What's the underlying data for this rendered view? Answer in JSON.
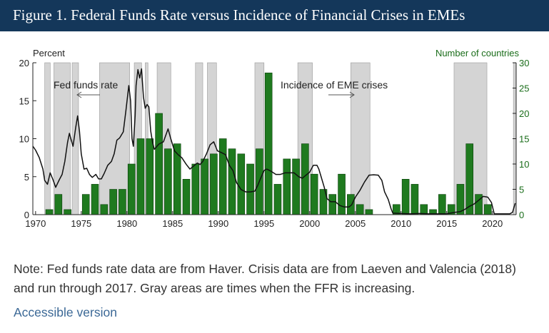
{
  "header": {
    "title": "Figure 1. Federal Funds Rate versus Incidence of Financial Crises in EMEs"
  },
  "chart_data": {
    "type": "bar",
    "left_axis_label": "Percent",
    "right_axis_label": "Number of countries",
    "left_ticks": [
      0,
      5,
      10,
      15,
      20
    ],
    "right_ticks": [
      0,
      5,
      10,
      15,
      20,
      25,
      30
    ],
    "left_ylim": [
      0,
      20
    ],
    "right_ylim": [
      0,
      30
    ],
    "right_tick_labels": [
      "0",
      "5",
      "10",
      "15",
      "20",
      "25",
      "30"
    ],
    "x_ticks": [
      1970,
      1975,
      1980,
      1985,
      1990,
      1995,
      2000,
      2005,
      2010,
      2015,
      2020
    ],
    "x_tick_labels": [
      "1970",
      "1975",
      "1980",
      "1985",
      "1990",
      "1995",
      "2000",
      "2005",
      "2010",
      "2015",
      "2020"
    ],
    "xlim": [
      1969.7,
      2022.6
    ],
    "annotations": {
      "ffr": "Fed funds rate",
      "crises": "Incidence of EME crises"
    },
    "bar_color": "#1f7a1f",
    "line_color": "#111111",
    "shade_color": "#d4d4d4",
    "shaded_periods": [
      [
        1971.0,
        1971.6
      ],
      [
        1972.0,
        1973.8
      ],
      [
        1974.0,
        1974.7
      ],
      [
        1977.0,
        1980.3
      ],
      [
        1980.8,
        1981.6
      ],
      [
        1982.0,
        1982.3
      ],
      [
        1983.3,
        1984.8
      ],
      [
        1987.5,
        1988.3
      ],
      [
        1988.8,
        1989.8
      ],
      [
        1994.0,
        1995.0
      ],
      [
        1998.7,
        2000.3
      ],
      [
        2004.5,
        2006.6
      ],
      [
        2015.8,
        2019.4
      ],
      [
        2022.3,
        2022.6
      ]
    ],
    "series": [
      {
        "name": "Incidence of EME crises",
        "type": "bar",
        "x": [
          1970,
          1971,
          1972,
          1973,
          1974,
          1975,
          1976,
          1977,
          1978,
          1979,
          1980,
          1981,
          1982,
          1983,
          1984,
          1985,
          1986,
          1987,
          1988,
          1989,
          1990,
          1991,
          1992,
          1993,
          1994,
          1995,
          1996,
          1997,
          1998,
          1999,
          2000,
          2001,
          2002,
          2003,
          2004,
          2005,
          2006,
          2007,
          2008,
          2009,
          2010,
          2011,
          2012,
          2013,
          2014,
          2015,
          2016,
          2017,
          2018,
          2019,
          2020
        ],
        "values": [
          0,
          1,
          4,
          1,
          0,
          4,
          6,
          2,
          5,
          5,
          10,
          15,
          15,
          20,
          13,
          14,
          7,
          10,
          11,
          12,
          15,
          13,
          12,
          10,
          13,
          28,
          6,
          11,
          11,
          14,
          8,
          5,
          4,
          8,
          4,
          2,
          1,
          0,
          0,
          2,
          7,
          6,
          2,
          1,
          4,
          2,
          6,
          14,
          4,
          2,
          0
        ]
      },
      {
        "name": "Fed funds rate",
        "type": "line",
        "points": [
          [
            1969.7,
            9.0
          ],
          [
            1970.0,
            8.5
          ],
          [
            1970.4,
            7.5
          ],
          [
            1970.8,
            6.0
          ],
          [
            1971.0,
            4.5
          ],
          [
            1971.3,
            4.0
          ],
          [
            1971.6,
            5.5
          ],
          [
            1971.9,
            4.6
          ],
          [
            1972.2,
            3.6
          ],
          [
            1972.6,
            4.6
          ],
          [
            1972.9,
            5.3
          ],
          [
            1973.2,
            7.0
          ],
          [
            1973.5,
            9.5
          ],
          [
            1973.7,
            10.7
          ],
          [
            1973.9,
            9.8
          ],
          [
            1974.1,
            9.0
          ],
          [
            1974.4,
            11.5
          ],
          [
            1974.6,
            13.0
          ],
          [
            1974.8,
            11.0
          ],
          [
            1975.0,
            8.0
          ],
          [
            1975.3,
            6.0
          ],
          [
            1975.6,
            6.1
          ],
          [
            1975.9,
            5.3
          ],
          [
            1976.2,
            4.9
          ],
          [
            1976.6,
            5.3
          ],
          [
            1976.9,
            4.7
          ],
          [
            1977.2,
            4.7
          ],
          [
            1977.5,
            5.4
          ],
          [
            1977.9,
            6.5
          ],
          [
            1978.3,
            7.0
          ],
          [
            1978.6,
            8.0
          ],
          [
            1978.9,
            9.8
          ],
          [
            1979.2,
            10.1
          ],
          [
            1979.6,
            10.9
          ],
          [
            1979.9,
            13.8
          ],
          [
            1980.2,
            17.0
          ],
          [
            1980.4,
            15.0
          ],
          [
            1980.55,
            10.0
          ],
          [
            1980.7,
            9.0
          ],
          [
            1980.9,
            13.0
          ],
          [
            1981.0,
            17.0
          ],
          [
            1981.2,
            19.1
          ],
          [
            1981.4,
            18.0
          ],
          [
            1981.6,
            19.2
          ],
          [
            1981.8,
            15.5
          ],
          [
            1982.0,
            14.0
          ],
          [
            1982.2,
            14.5
          ],
          [
            1982.4,
            14.2
          ],
          [
            1982.6,
            11.0
          ],
          [
            1982.8,
            9.5
          ],
          [
            1983.0,
            8.6
          ],
          [
            1983.5,
            9.3
          ],
          [
            1984.0,
            9.6
          ],
          [
            1984.5,
            11.3
          ],
          [
            1984.8,
            10.0
          ],
          [
            1985.2,
            8.4
          ],
          [
            1985.6,
            7.9
          ],
          [
            1986.0,
            7.5
          ],
          [
            1986.5,
            6.6
          ],
          [
            1986.9,
            6.0
          ],
          [
            1987.3,
            6.4
          ],
          [
            1987.7,
            6.8
          ],
          [
            1988.0,
            6.6
          ],
          [
            1988.3,
            7.0
          ],
          [
            1988.7,
            8.0
          ],
          [
            1989.1,
            9.2
          ],
          [
            1989.5,
            9.6
          ],
          [
            1989.9,
            8.4
          ],
          [
            1990.3,
            8.2
          ],
          [
            1990.8,
            7.9
          ],
          [
            1991.2,
            6.5
          ],
          [
            1991.6,
            5.8
          ],
          [
            1992.0,
            4.2
          ],
          [
            1992.5,
            3.3
          ],
          [
            1993.0,
            3.0
          ],
          [
            1993.5,
            3.0
          ],
          [
            1994.0,
            3.1
          ],
          [
            1994.3,
            3.8
          ],
          [
            1994.6,
            4.7
          ],
          [
            1995.0,
            5.8
          ],
          [
            1995.3,
            6.0
          ],
          [
            1995.8,
            5.7
          ],
          [
            1996.3,
            5.3
          ],
          [
            1996.8,
            5.3
          ],
          [
            1997.3,
            5.5
          ],
          [
            1997.8,
            5.5
          ],
          [
            1998.3,
            5.5
          ],
          [
            1998.8,
            5.0
          ],
          [
            1999.2,
            4.8
          ],
          [
            1999.6,
            5.2
          ],
          [
            2000.0,
            5.6
          ],
          [
            2000.4,
            6.5
          ],
          [
            2000.8,
            6.5
          ],
          [
            2001.0,
            6.0
          ],
          [
            2001.3,
            4.8
          ],
          [
            2001.6,
            3.6
          ],
          [
            2001.9,
            2.1
          ],
          [
            2002.3,
            1.7
          ],
          [
            2002.8,
            1.7
          ],
          [
            2003.3,
            1.2
          ],
          [
            2003.8,
            1.0
          ],
          [
            2004.3,
            1.0
          ],
          [
            2004.6,
            1.3
          ],
          [
            2005.0,
            2.3
          ],
          [
            2005.5,
            3.2
          ],
          [
            2006.0,
            4.3
          ],
          [
            2006.5,
            5.2
          ],
          [
            2007.0,
            5.25
          ],
          [
            2007.5,
            5.2
          ],
          [
            2007.9,
            4.5
          ],
          [
            2008.2,
            3.0
          ],
          [
            2008.6,
            2.0
          ],
          [
            2008.9,
            0.8
          ],
          [
            2009.1,
            0.2
          ],
          [
            2010,
            0.15
          ],
          [
            2011,
            0.1
          ],
          [
            2012,
            0.15
          ],
          [
            2013,
            0.1
          ],
          [
            2014,
            0.1
          ],
          [
            2015,
            0.12
          ],
          [
            2015.9,
            0.3
          ],
          [
            2016.5,
            0.4
          ],
          [
            2017.0,
            0.7
          ],
          [
            2017.5,
            1.1
          ],
          [
            2018.0,
            1.4
          ],
          [
            2018.5,
            1.9
          ],
          [
            2019.0,
            2.4
          ],
          [
            2019.5,
            2.3
          ],
          [
            2019.9,
            1.6
          ],
          [
            2020.2,
            0.1
          ],
          [
            2021.0,
            0.1
          ],
          [
            2021.9,
            0.1
          ],
          [
            2022.2,
            0.3
          ],
          [
            2022.5,
            1.5
          ]
        ]
      }
    ]
  },
  "note": "Note: Fed funds rate data are from Haver. Crisis data are from Laeven and Valencia (2018) and run through 2017. Gray areas are times when the FFR is increasing.",
  "accessible_link": "Accessible version"
}
